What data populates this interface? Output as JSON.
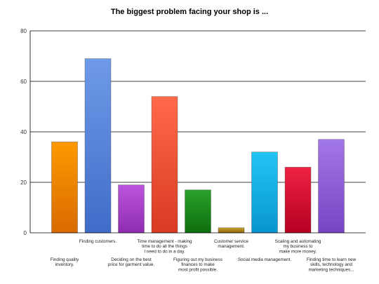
{
  "chart_data": {
    "type": "bar",
    "title": "The biggest problem facing your shop is ...",
    "xlabel": "",
    "ylabel": "",
    "ylim": [
      0,
      80
    ],
    "yticks": [
      0,
      20,
      40,
      60,
      80
    ],
    "grid": true,
    "legend": "none",
    "categories": [
      "Finding quality inventory.",
      "Finding customers.",
      "Deciding on the best price for garment value.",
      "Time management - making time to do all the things I need to do in a day.",
      "Figuring out my business finances to make most profit possible.",
      "Customer service management.",
      "Social media management.",
      "Scaling and automating my business to make more money.",
      "Finding time to learn new skills, technology and marketing techniques..."
    ],
    "category_label_lines": [
      [
        "Finding quality",
        "inventory."
      ],
      [
        "Finding customers."
      ],
      [
        "Deciding on the best",
        "price for garment value."
      ],
      [
        "Time management - making",
        "time to do all the things",
        "I need to do in a day."
      ],
      [
        "Figuring out my business",
        "finances to make",
        "most profit possible."
      ],
      [
        "Customer service",
        "management."
      ],
      [
        "Social media management."
      ],
      [
        "Scaling and automating",
        "my business to",
        "make more money."
      ],
      [
        "Finding time to learn new",
        "skills, technology and",
        "marketing techniques..."
      ]
    ],
    "values": [
      36,
      69,
      19,
      54,
      17,
      2,
      32,
      26,
      37
    ],
    "colors": [
      [
        "#ff9900",
        "#d96a00"
      ],
      [
        "#6f9ae8",
        "#3f6cc8"
      ],
      [
        "#bb55dd",
        "#8f2cb0"
      ],
      [
        "#ff6a4a",
        "#d83a22"
      ],
      [
        "#2aa02a",
        "#0e6e0e"
      ],
      [
        "#c49a2a",
        "#916a0c"
      ],
      [
        "#22c5f5",
        "#0995cf"
      ],
      [
        "#ee2244",
        "#b50022"
      ],
      [
        "#a277e6",
        "#7646c2"
      ]
    ]
  }
}
